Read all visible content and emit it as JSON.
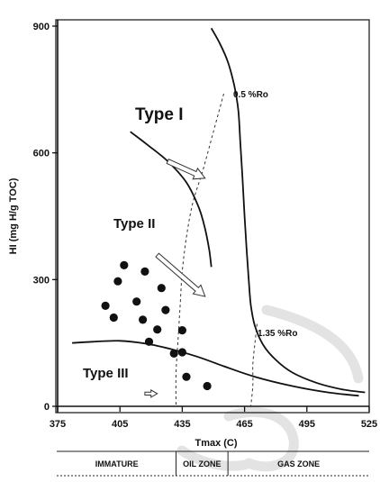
{
  "chart_data": {
    "type": "scatter",
    "title": "",
    "xlabel": "Tmax (C)",
    "ylabel": "HI (mg H/g TOC)",
    "xlim": [
      375,
      525
    ],
    "ylim": [
      0,
      900
    ],
    "xticks": [
      375,
      405,
      435,
      465,
      495,
      525
    ],
    "xtick_labels": [
      "375",
      "405",
      "435",
      "465",
      "495",
      "525"
    ],
    "yticks": [
      0,
      300,
      600,
      900
    ],
    "ytick_labels": [
      "0",
      "300",
      "600",
      "900"
    ],
    "grid": false,
    "points": [
      {
        "x": 398,
        "y": 238
      },
      {
        "x": 402,
        "y": 210
      },
      {
        "x": 404,
        "y": 296
      },
      {
        "x": 407,
        "y": 334
      },
      {
        "x": 413,
        "y": 248
      },
      {
        "x": 417,
        "y": 319
      },
      {
        "x": 416,
        "y": 205
      },
      {
        "x": 419,
        "y": 153
      },
      {
        "x": 423,
        "y": 182
      },
      {
        "x": 425,
        "y": 280
      },
      {
        "x": 427,
        "y": 228
      },
      {
        "x": 431,
        "y": 125
      },
      {
        "x": 435,
        "y": 128
      },
      {
        "x": 435,
        "y": 180
      },
      {
        "x": 437,
        "y": 70
      },
      {
        "x": 447,
        "y": 48
      }
    ],
    "curves": [
      {
        "name": "Type I",
        "points": [
          [
            449,
            895
          ],
          [
            453,
            860
          ],
          [
            457,
            815
          ],
          [
            460,
            760
          ],
          [
            462,
            700
          ],
          [
            463,
            620
          ],
          [
            464,
            540
          ],
          [
            465,
            450
          ],
          [
            466,
            370
          ],
          [
            467,
            300
          ],
          [
            468,
            240
          ],
          [
            470,
            190
          ],
          [
            474,
            145
          ],
          [
            480,
            110
          ],
          [
            488,
            80
          ],
          [
            500,
            55
          ],
          [
            512,
            40
          ],
          [
            523,
            33
          ]
        ]
      },
      {
        "name": "Type II",
        "points": [
          [
            410,
            650
          ],
          [
            418,
            620
          ],
          [
            428,
            580
          ],
          [
            437,
            530
          ],
          [
            443,
            470
          ],
          [
            446,
            420
          ],
          [
            448,
            370
          ],
          [
            449,
            330
          ]
        ]
      },
      {
        "name": "Type III",
        "points": [
          [
            382,
            150
          ],
          [
            392,
            153
          ],
          [
            405,
            155
          ],
          [
            418,
            148
          ],
          [
            430,
            135
          ],
          [
            442,
            118
          ],
          [
            455,
            95
          ],
          [
            470,
            70
          ],
          [
            488,
            48
          ],
          [
            505,
            33
          ],
          [
            520,
            25
          ]
        ]
      }
    ],
    "ro_lines": [
      {
        "label": "0.5 %Ro",
        "points": [
          [
            455,
            740
          ],
          [
            450,
            650
          ],
          [
            445,
            560
          ],
          [
            440,
            480
          ],
          [
            437,
            400
          ],
          [
            435,
            320
          ],
          [
            434,
            240
          ],
          [
            433,
            160
          ],
          [
            432,
            80
          ],
          [
            432,
            0
          ]
        ]
      },
      {
        "label": "1.35 %Ro",
        "points": [
          [
            471,
            195
          ],
          [
            470,
            150
          ],
          [
            469,
            100
          ],
          [
            469,
            50
          ],
          [
            468,
            0
          ]
        ]
      }
    ],
    "maturation_arrows": [
      {
        "from": [
          428,
          580
        ],
        "to": [
          446,
          540
        ]
      },
      {
        "from": [
          423,
          358
        ],
        "to": [
          446,
          260
        ]
      },
      {
        "from": [
          417,
          30
        ],
        "to": [
          423,
          30
        ]
      }
    ],
    "annotations": {
      "type_i": "Type I",
      "type_ii": "Type II",
      "type_iii": "Type III",
      "ro_low": "0.5 %Ro",
      "ro_high": "1.35 %Ro"
    },
    "zones": [
      {
        "label": "IMMATURE",
        "x_start": 375,
        "x_end": 432
      },
      {
        "label": "OIL ZONE",
        "x_start": 432,
        "x_end": 457
      },
      {
        "label": "GAS ZONE",
        "x_start": 457,
        "x_end": 525
      }
    ],
    "colors": {
      "ink": "#111111",
      "arrow_fill": "#ffffff"
    }
  }
}
